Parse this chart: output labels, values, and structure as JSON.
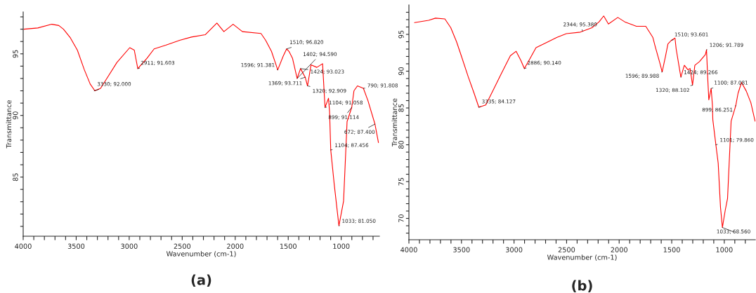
{
  "chart_data": [
    {
      "type": "line",
      "title": "(a)",
      "xlabel": "Wavenumber (cm-1)",
      "ylabel": "Transmittance",
      "xlim": [
        4000,
        640
      ],
      "ylim": [
        80.2,
        98.4
      ],
      "xticks": [
        {
          "value": 700,
          "label": null
        },
        {
          "value": 800,
          "label": null
        },
        {
          "value": 900,
          "label": null
        },
        1000,
        {
          "value": 1100,
          "label": null
        },
        {
          "value": 1200,
          "label": null
        },
        {
          "value": 1300,
          "label": null
        },
        {
          "value": 1400,
          "label": null
        },
        1500,
        {
          "value": 1600,
          "label": null
        },
        {
          "value": 1700,
          "label": null
        },
        {
          "value": 1800,
          "label": null
        },
        {
          "value": 1900,
          "label": null
        },
        2000,
        {
          "value": 2100,
          "label": null
        },
        {
          "value": 2200,
          "label": null
        },
        {
          "value": 2300,
          "label": null
        },
        {
          "value": 2400,
          "label": null
        },
        2500,
        {
          "value": 2600,
          "label": null
        },
        {
          "value": 2700,
          "label": null
        },
        {
          "value": 2800,
          "label": null
        },
        {
          "value": 2900,
          "label": null
        },
        3000,
        {
          "value": 3100,
          "label": null
        },
        {
          "value": 3200,
          "label": null
        },
        {
          "value": 3300,
          "label": null
        },
        {
          "value": 3400,
          "label": null
        },
        3500,
        {
          "value": 3600,
          "label": null
        },
        {
          "value": 3700,
          "label": null
        },
        {
          "value": 3800,
          "label": null
        },
        {
          "value": 3900,
          "label": null
        },
        4000
      ],
      "yticks": [
        {
          "value": 81,
          "label": null
        },
        {
          "value": 82,
          "label": null
        },
        {
          "value": 83,
          "label": null
        },
        {
          "value": 84,
          "label": null
        },
        85,
        {
          "value": 86,
          "label": null
        },
        {
          "value": 87,
          "label": null
        },
        {
          "value": 88,
          "label": null
        },
        {
          "value": 89,
          "label": null
        },
        90,
        {
          "value": 91,
          "label": null
        },
        {
          "value": 92,
          "label": null
        },
        {
          "value": 93,
          "label": null
        },
        {
          "value": 94,
          "label": null
        },
        95,
        {
          "value": 96,
          "label": null
        },
        {
          "value": 97,
          "label": null
        },
        {
          "value": 98,
          "label": null
        }
      ],
      "series": [
        {
          "color": "#ff0000",
          "x": [
            3993,
            3862,
            3730,
            3664,
            3620,
            3555,
            3489,
            3423,
            3368,
            3324,
            3270,
            3204,
            3116,
            2995,
            2952,
            2919,
            2831,
            2765,
            2656,
            2524,
            2414,
            2283,
            2173,
            2107,
            2020,
            1932,
            1757,
            1713,
            1658,
            1599,
            1548,
            1515,
            1493,
            1460,
            1416,
            1384,
            1340,
            1318,
            1285,
            1230,
            1176,
            1153,
            1120,
            1110,
            1099,
            1066,
            1022,
            978,
            945,
            901,
            880,
            847,
            791,
            748,
            682,
            649
          ],
          "values": [
            97.0,
            97.1,
            97.4,
            97.3,
            97.0,
            96.3,
            95.3,
            93.7,
            92.55,
            92.0,
            92.2,
            93.1,
            94.3,
            95.5,
            95.3,
            93.8,
            94.65,
            95.4,
            95.7,
            96.1,
            96.36,
            96.55,
            97.5,
            96.8,
            97.4,
            96.8,
            96.65,
            96.1,
            95.2,
            93.7,
            94.8,
            95.4,
            95.2,
            94.65,
            93.0,
            93.8,
            93.1,
            92.4,
            94.1,
            93.9,
            94.2,
            90.65,
            91.4,
            90.3,
            87.2,
            84.4,
            81.05,
            83.05,
            89.5,
            90.65,
            92.0,
            92.4,
            92.2,
            91.2,
            89.3,
            87.8
          ]
        }
      ],
      "annotations": [
        {
          "text": "3330; 92.000",
          "x": 3330,
          "y": 92.0
        },
        {
          "text": "2911; 91.603",
          "x": 2919,
          "y": 93.8
        },
        {
          "text": "1510; 96.820",
          "x": 1515,
          "y": 95.4
        },
        {
          "text": "1596; 91.381",
          "x": 1599,
          "y": 93.7
        },
        {
          "text": "1402; 94.590",
          "x": 1416,
          "y": 93.0
        },
        {
          "text": "1424; 93.023",
          "x": 1384,
          "y": 93.8
        },
        {
          "text": "1369; 93.711",
          "x": 1340,
          "y": 93.1
        },
        {
          "text": "1320; 92.909",
          "x": 1318,
          "y": 92.4
        },
        {
          "text": "1104; 91.058",
          "x": 1153,
          "y": 90.65
        },
        {
          "text": "790; 91.808",
          "x": 791,
          "y": 92.2
        },
        {
          "text": "899; 91.114",
          "x": 901,
          "y": 90.65
        },
        {
          "text": "1104; 87.456",
          "x": 1099,
          "y": 87.2
        },
        {
          "text": "672; 87.400",
          "x": 682,
          "y": 89.3
        },
        {
          "text": "1033; 81.050",
          "x": 1022,
          "y": 81.05
        }
      ]
    },
    {
      "type": "line",
      "title": "(b)",
      "xlabel": "Wavenumber (cm-1)",
      "ylabel": "Transmittance",
      "xlim": [
        4000,
        705
      ],
      "ylim": [
        67.1,
        99.0
      ],
      "xticks": [
        {
          "value": 800,
          "label": null
        },
        {
          "value": 900,
          "label": null
        },
        1000,
        {
          "value": 1100,
          "label": null
        },
        {
          "value": 1200,
          "label": null
        },
        {
          "value": 1300,
          "label": null
        },
        {
          "value": 1400,
          "label": null
        },
        1500,
        {
          "value": 1600,
          "label": null
        },
        {
          "value": 1700,
          "label": null
        },
        {
          "value": 1800,
          "label": null
        },
        {
          "value": 1900,
          "label": null
        },
        2000,
        {
          "value": 2100,
          "label": null
        },
        {
          "value": 2200,
          "label": null
        },
        {
          "value": 2300,
          "label": null
        },
        {
          "value": 2400,
          "label": null
        },
        2500,
        {
          "value": 2600,
          "label": null
        },
        {
          "value": 2700,
          "label": null
        },
        {
          "value": 2800,
          "label": null
        },
        {
          "value": 2900,
          "label": null
        },
        3000,
        {
          "value": 3100,
          "label": null
        },
        {
          "value": 3200,
          "label": null
        },
        {
          "value": 3300,
          "label": null
        },
        {
          "value": 3400,
          "label": null
        },
        3500,
        {
          "value": 3600,
          "label": null
        },
        {
          "value": 3700,
          "label": null
        },
        {
          "value": 3800,
          "label": null
        },
        {
          "value": 3900,
          "label": null
        },
        4000
      ],
      "yticks": [
        {
          "value": 68,
          "label": null
        },
        {
          "value": 69,
          "label": null
        },
        70,
        {
          "value": 71,
          "label": null
        },
        {
          "value": 72,
          "label": null
        },
        {
          "value": 73,
          "label": null
        },
        {
          "value": 74,
          "label": null
        },
        75,
        {
          "value": 76,
          "label": null
        },
        {
          "value": 77,
          "label": null
        },
        {
          "value": 78,
          "label": null
        },
        {
          "value": 79,
          "label": null
        },
        80,
        {
          "value": 81,
          "label": null
        },
        {
          "value": 82,
          "label": null
        },
        {
          "value": 83,
          "label": null
        },
        {
          "value": 84,
          "label": null
        },
        85,
        {
          "value": 86,
          "label": null
        },
        {
          "value": 87,
          "label": null
        },
        {
          "value": 88,
          "label": null
        },
        {
          "value": 89,
          "label": null
        },
        90,
        {
          "value": 91,
          "label": null
        },
        {
          "value": 92,
          "label": null
        },
        {
          "value": 93,
          "label": null
        },
        {
          "value": 94,
          "label": null
        },
        95,
        {
          "value": 96,
          "label": null
        },
        {
          "value": 97,
          "label": null
        },
        {
          "value": 98,
          "label": null
        }
      ],
      "series": [
        {
          "color": "#ff0000",
          "x": [
            3947,
            3813,
            3747,
            3658,
            3602,
            3547,
            3502,
            3435,
            3380,
            3335,
            3269,
            3213,
            3125,
            3035,
            2980,
            2935,
            2902,
            2858,
            2791,
            2702,
            2591,
            2502,
            2369,
            2347,
            2258,
            2191,
            2147,
            2102,
            2013,
            1947,
            1836,
            1747,
            1680,
            1658,
            1613,
            1591,
            1558,
            1536,
            1502,
            1469,
            1458,
            1425,
            1413,
            1380,
            1347,
            1325,
            1302,
            1280,
            1236,
            1180,
            1169,
            1158,
            1147,
            1125,
            1113,
            1109,
            1080,
            1058,
            1036,
            1018,
            991,
            969,
            935,
            891,
            869,
            836,
            791,
            747,
            707
          ],
          "values": [
            96.6,
            96.9,
            97.2,
            97.1,
            95.9,
            94.0,
            92.1,
            89.2,
            87.0,
            85.1,
            85.4,
            87.0,
            89.55,
            92.1,
            92.7,
            91.45,
            90.35,
            91.45,
            93.2,
            93.8,
            94.6,
            95.1,
            95.3,
            95.43,
            95.9,
            96.7,
            97.5,
            96.4,
            97.3,
            96.7,
            96.1,
            96.1,
            94.6,
            93.4,
            91.1,
            89.9,
            92.1,
            93.7,
            94.2,
            94.5,
            93.05,
            90.2,
            89.2,
            90.8,
            90.2,
            90.35,
            88.1,
            90.8,
            91.3,
            92.26,
            92.9,
            89.2,
            86.1,
            87.65,
            85.4,
            83.4,
            80.0,
            77.5,
            71.5,
            68.76,
            71.1,
            72.7,
            83.2,
            85.3,
            87.0,
            88.45,
            87.3,
            85.7,
            83.2
          ]
        }
      ],
      "annotations": [
        {
          "text": "3335; 84.127",
          "x": 3335,
          "y": 85.1
        },
        {
          "text": "2886; 90.140",
          "x": 2902,
          "y": 90.35
        },
        {
          "text": "2344; 95.380",
          "x": 2347,
          "y": 95.43
        },
        {
          "text": "1596; 89.988",
          "x": 1591,
          "y": 89.9
        },
        {
          "text": "1510; 93.601",
          "x": 1502,
          "y": 94.2
        },
        {
          "text": "1206; 91.789",
          "x": 1169,
          "y": 92.9
        },
        {
          "text": "1424; 89.266",
          "x": 1413,
          "y": 89.2
        },
        {
          "text": "1320; 88.102",
          "x": 1302,
          "y": 88.1
        },
        {
          "text": "1100; 87.081",
          "x": 1125,
          "y": 87.65
        },
        {
          "text": "899; 86.251",
          "x": 891,
          "y": 85.3
        },
        {
          "text": "1101; 79.860",
          "x": 1080,
          "y": 80.0
        },
        {
          "text": "1033; 68.560",
          "x": 1018,
          "y": 68.76
        }
      ]
    }
  ]
}
